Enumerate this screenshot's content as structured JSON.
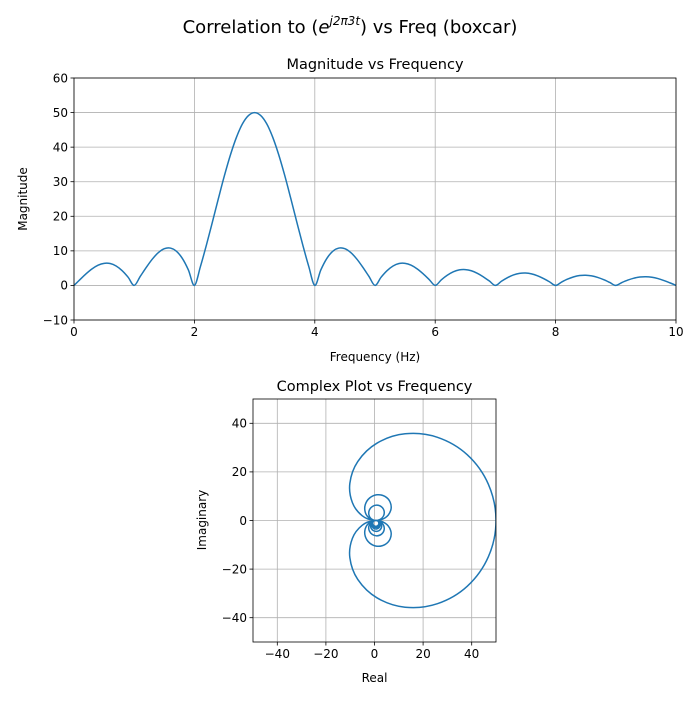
{
  "figure": {
    "title_prefix": "Correlation to (",
    "title_math_base": "e",
    "title_math_sup": "j2π3t",
    "title_suffix": ") vs Freq (boxcar)"
  },
  "chart_data": [
    {
      "type": "line",
      "title": "Magnitude vs Frequency",
      "xlabel": "Frequency (Hz)",
      "ylabel": "Magnitude",
      "xlim": [
        0,
        10
      ],
      "ylim": [
        -10,
        60
      ],
      "xticks": [
        0,
        2,
        4,
        6,
        8,
        10
      ],
      "yticks": [
        -10,
        0,
        10,
        20,
        30,
        40,
        50,
        60
      ],
      "grid": true,
      "color": "#1f77b4",
      "x": [
        0,
        0.1,
        0.2,
        0.3,
        0.4,
        0.5,
        0.6,
        0.7,
        0.8,
        0.9,
        1,
        1.1,
        1.2,
        1.3,
        1.4,
        1.5,
        1.6,
        1.7,
        1.8,
        1.9,
        2,
        2.1,
        2.2,
        2.3,
        2.4,
        2.5,
        2.6,
        2.7,
        2.8,
        2.9,
        3,
        3.1,
        3.2,
        3.3,
        3.4,
        3.5,
        3.6,
        3.7,
        3.8,
        3.9,
        4,
        4.1,
        4.2,
        4.3,
        4.4,
        4.5,
        4.6,
        4.7,
        4.8,
        4.9,
        5,
        5.1,
        5.2,
        5.3,
        5.4,
        5.5,
        5.6,
        5.7,
        5.8,
        5.9,
        6,
        6.1,
        6.2,
        6.3,
        6.4,
        6.5,
        6.6,
        6.7,
        6.8,
        6.9,
        7,
        7.1,
        7.2,
        7.3,
        7.4,
        7.5,
        7.6,
        7.7,
        7.8,
        7.9,
        8,
        8.1,
        8.2,
        8.3,
        8.4,
        8.5,
        8.6,
        8.7,
        8.8,
        8.9,
        9,
        9.1,
        9.2,
        9.3,
        9.4,
        9.5,
        9.6,
        9.7,
        9.8,
        9.9,
        10
      ],
      "y": [
        0,
        1.7,
        3.36,
        4.79,
        5.85,
        6.39,
        6.33,
        5.62,
        4.27,
        2.35,
        0,
        2.59,
        5.2,
        7.59,
        9.47,
        10.63,
        10.81,
        9.91,
        7.81,
        4.47,
        0,
        5.46,
        11.7,
        18.39,
        25.23,
        31.84,
        37.84,
        42.92,
        46.8,
        49.18,
        50,
        49.18,
        46.8,
        42.92,
        37.84,
        31.84,
        25.23,
        18.39,
        11.7,
        5.46,
        0,
        4.47,
        7.81,
        9.91,
        10.81,
        10.63,
        9.47,
        7.59,
        5.2,
        2.59,
        0,
        2.35,
        4.27,
        5.62,
        6.33,
        6.39,
        5.85,
        4.79,
        3.36,
        1.7,
        0,
        1.6,
        2.94,
        3.93,
        4.49,
        4.58,
        4.24,
        3.51,
        2.49,
        1.27,
        0,
        1.21,
        2.25,
        3.03,
        3.48,
        3.58,
        3.34,
        2.78,
        1.98,
        1.02,
        0,
        0.98,
        1.83,
        2.47,
        2.86,
        2.95,
        2.76,
        2.31,
        1.65,
        0.85,
        0,
        0.83,
        1.55,
        2.1,
        2.43,
        2.52,
        2.36,
        1.98,
        1.42,
        0.74,
        0
      ]
    },
    {
      "type": "line",
      "title": "Complex Plot vs Frequency",
      "xlabel": "Real",
      "ylabel": "Imaginary",
      "xlim": [
        -50,
        50
      ],
      "ylim": [
        -50,
        50
      ],
      "xticks": [
        -40,
        -20,
        0,
        20,
        40
      ],
      "yticks": [
        -40,
        -20,
        0,
        20,
        40
      ],
      "grid": true,
      "color": "#1f77b4",
      "real": [
        0,
        -1.49,
        -2.33,
        -2.12,
        -0.88,
        1.0,
        2.84,
        3.92,
        3.76,
        2.31,
        0,
        -2.35,
        -3.84,
        -3.78,
        -2.01,
        1.0,
        4.23,
        6.46,
        6.65,
        4.34,
        0,
        -5.09,
        -9.1,
        -10.14,
        -6.89,
        1.0,
        12.59,
        25.89,
        38.2,
        46.87,
        50,
        46.87,
        38.2,
        25.89,
        12.59,
        1.0,
        -6.89,
        -10.14,
        -9.1,
        -5.09,
        0,
        4.34,
        6.65,
        6.46,
        4.23,
        1.0,
        -2.01,
        -3.78,
        -3.84,
        -2.35,
        0,
        2.31,
        3.76,
        3.92,
        2.84,
        1.0,
        -0.88,
        -2.12,
        -2.33,
        -1.49,
        0,
        1.58,
        2.68,
        2.92,
        2.26,
        1.0,
        -0.37,
        -1.35,
        -1.61,
        -1.08,
        0,
        1.21,
        2.1,
        2.37,
        1.94,
        1.0,
        -0.08,
        -0.91,
        -1.18,
        -0.83,
        0,
        0.98,
        1.75,
        2.03,
        1.74,
        1.0,
        0.1,
        -0.62,
        -0.9,
        -0.66,
        0,
        0.82,
        1.51,
        1.79,
        1.6,
        1.0,
        0.24,
        -0.41,
        -0.7,
        -0.54,
        0
      ],
      "imag": [
        0,
        0.81,
        2.42,
        4.29,
        5.78,
        6.31,
        5.66,
        4.02,
        2.01,
        0.43,
        0,
        1.09,
        3.51,
        6.58,
        9.26,
        10.58,
        9.95,
        7.51,
        4.1,
        1.08,
        0,
        1.98,
        7.35,
        15.34,
        24.27,
        31.82,
        35.68,
        34.24,
        27.03,
        14.9,
        0,
        -14.9,
        -27.03,
        -34.24,
        -35.68,
        -31.82,
        -24.27,
        -15.34,
        -7.35,
        -1.98,
        0,
        -1.08,
        -4.1,
        -7.51,
        -9.95,
        -10.58,
        -9.26,
        -6.58,
        -3.51,
        -1.09,
        0,
        -0.43,
        -2.01,
        -4.02,
        -5.66,
        -6.31,
        -5.78,
        -4.29,
        -2.42,
        -0.81,
        0,
        -0.19,
        -1.22,
        -2.64,
        -3.88,
        -4.47,
        -4.22,
        -3.24,
        -1.9,
        -0.67,
        0,
        -0.07,
        -0.8,
        -1.89,
        -2.89,
        -3.44,
        -3.34,
        -2.63,
        -1.59,
        -0.59,
        0,
        -0.01,
        -0.54,
        -1.41,
        -2.27,
        -2.78,
        -2.76,
        -2.23,
        -1.38,
        -0.54,
        0,
        0.06,
        -0.37,
        -1.09,
        -1.83,
        -2.31,
        -2.35,
        -1.94,
        -1.24,
        -0.5,
        0
      ]
    }
  ]
}
